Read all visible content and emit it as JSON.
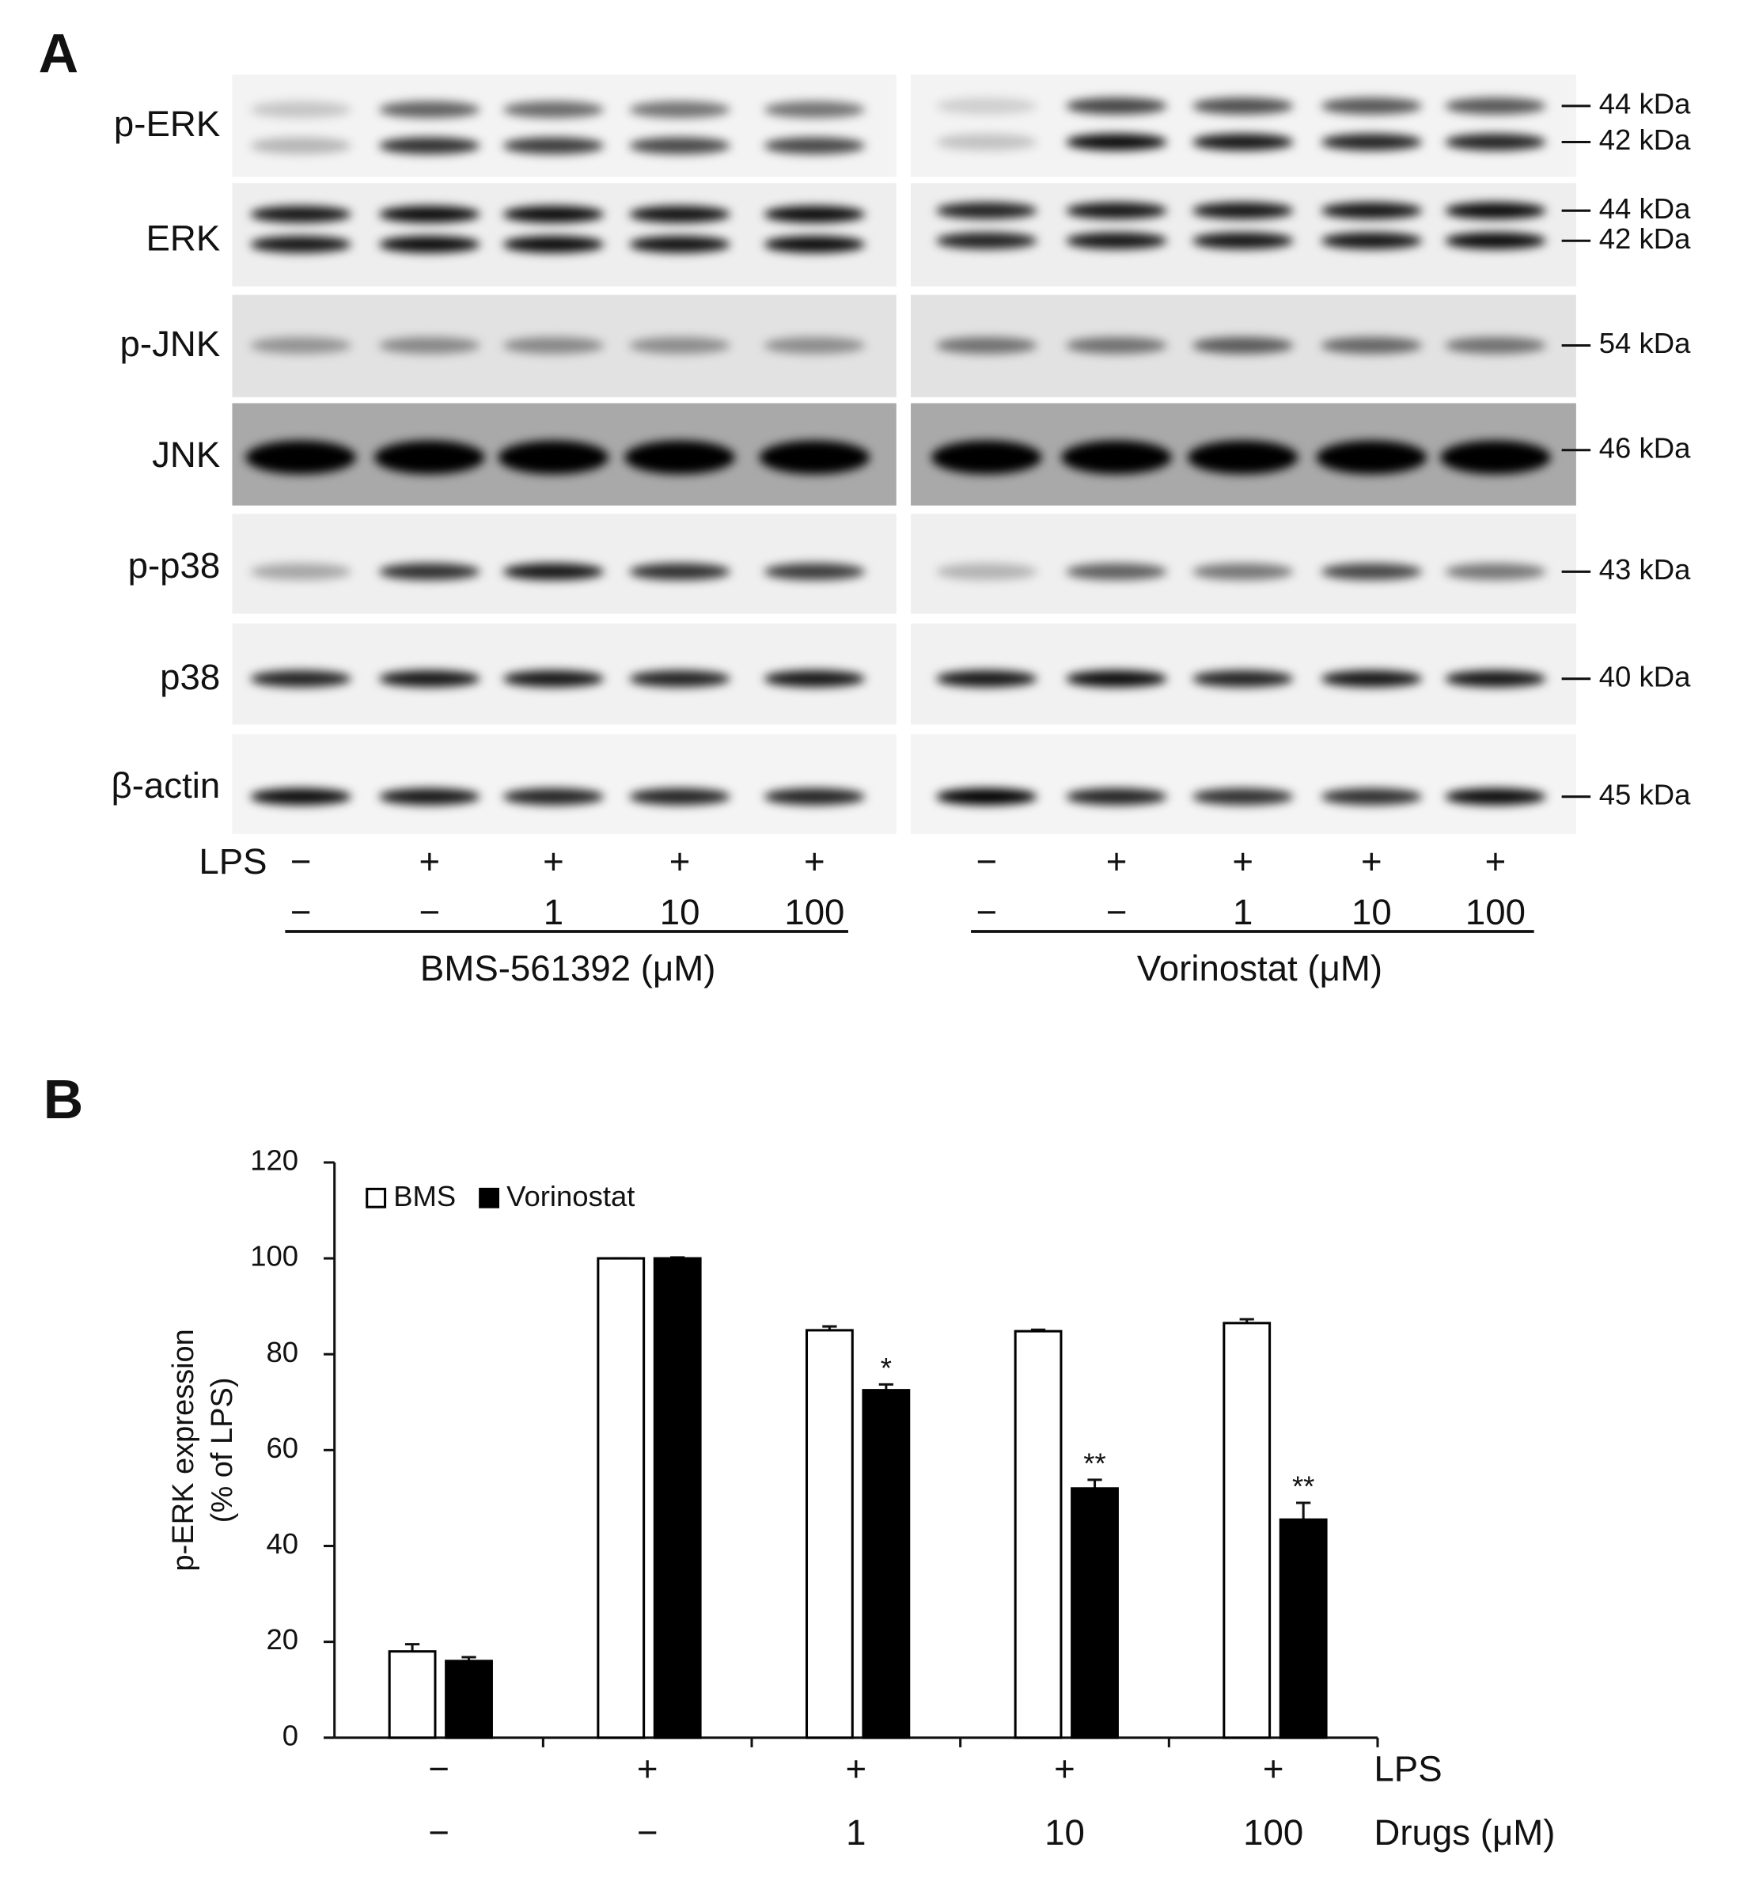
{
  "panel_a": {
    "label": "A",
    "rows": [
      {
        "name": "p-ERK",
        "sizes": [
          "44 kDa",
          "42 kDa"
        ]
      },
      {
        "name": "ERK",
        "sizes": [
          "44 kDa",
          "42 kDa"
        ]
      },
      {
        "name": "p-JNK",
        "sizes": [
          "54 kDa"
        ]
      },
      {
        "name": "JNK",
        "sizes": [
          "46 kDa"
        ]
      },
      {
        "name": "p-p38",
        "sizes": [
          "43 kDa"
        ]
      },
      {
        "name": "p38",
        "sizes": [
          "40 kDa"
        ]
      },
      {
        "name": "β-actin",
        "sizes": [
          "45 kDa"
        ]
      }
    ],
    "treatment_label": "LPS",
    "groups": [
      {
        "name": "BMS-561392 (μM)",
        "lps": [
          "−",
          "+",
          "+",
          "+",
          "+"
        ],
        "dose": [
          "−",
          "−",
          "1",
          "10",
          "100"
        ]
      },
      {
        "name": "Vorinostat (μM)",
        "lps": [
          "−",
          "+",
          "+",
          "+",
          "+"
        ],
        "dose": [
          "−",
          "−",
          "1",
          "10",
          "100"
        ]
      }
    ]
  },
  "panel_b_label": "B",
  "chart_data": {
    "type": "bar",
    "y_label": [
      "p-ERK expression",
      "(% of LPS)"
    ],
    "categories": [
      "−",
      "−",
      "1",
      "10",
      "100"
    ],
    "lps": [
      "−",
      "+",
      "+",
      "+",
      "+"
    ],
    "row_labels": [
      "LPS",
      "Drugs (μM)"
    ],
    "series": [
      {
        "name": "BMS",
        "color": "#ffffff",
        "values": [
          18,
          100,
          85,
          84.8,
          86.5
        ],
        "errors": [
          1.5,
          0,
          0.8,
          0.3,
          0.8
        ]
      },
      {
        "name": "Vorinostat",
        "color": "#000000",
        "values": [
          16,
          100,
          72.5,
          52,
          45.5
        ],
        "errors": [
          0.8,
          0.2,
          1.2,
          1.8,
          3.5
        ],
        "significance": [
          null,
          null,
          "*",
          "**",
          "**"
        ]
      }
    ],
    "ylim": [
      0,
      120
    ],
    "yticks": [
      0,
      20,
      40,
      60,
      80,
      100,
      120
    ]
  }
}
